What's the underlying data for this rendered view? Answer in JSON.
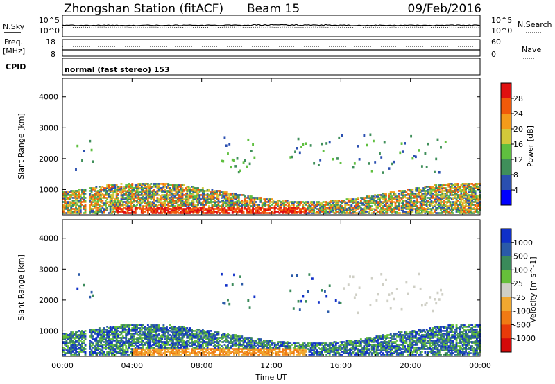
{
  "header": {
    "station": "Zhongshan Station (fitACF)",
    "beam": "Beam 15",
    "date": "09/Feb/2016"
  },
  "strips": {
    "nsky": {
      "label": "N.Sky",
      "ticks": [
        "10^5",
        "10^0"
      ],
      "right_ticks": [
        "10^5",
        "10^0"
      ],
      "right_label": "N.Search"
    },
    "freq": {
      "label_line1": "Freq.",
      "label_line2": "[MHz]",
      "ticks": [
        "18",
        "8"
      ],
      "right_ticks": [
        "60",
        "0"
      ],
      "right_label": "Nave"
    },
    "cpid": {
      "label": "CPID",
      "text": "normal (fast stereo) 153"
    }
  },
  "colors": {
    "power_scale": [
      "#0000ff",
      "#2a4fb0",
      "#3f8f5a",
      "#5fbf3f",
      "#d2c83a",
      "#f39b1a",
      "#f05a0a",
      "#e01010"
    ],
    "velocity_scale": [
      "#1030c8",
      "#2a5aa8",
      "#3a8a5a",
      "#66c03a",
      "#cfcfc5",
      "#f0a830",
      "#f07a14",
      "#e83a0a",
      "#d40a0a"
    ]
  },
  "chart_data": [
    {
      "type": "heatmap",
      "name": "power",
      "ylabel": "Slant Range [km]",
      "xlabel": "",
      "xticks": [
        "00:00",
        "04:00",
        "08:00",
        "12:00",
        "16:00",
        "20:00",
        "00:00"
      ],
      "yticks": [
        "1000",
        "2000",
        "3000",
        "4000"
      ],
      "ylim": [
        180,
        4600
      ],
      "xlim_hours": [
        0,
        24
      ],
      "colorbar": {
        "label": "Power [dB]",
        "ticks": [
          "4",
          "8",
          "12",
          "16",
          "20",
          "24",
          "28"
        ],
        "range": [
          0,
          30
        ]
      }
    },
    {
      "type": "heatmap",
      "name": "velocity",
      "ylabel": "Slant Range [km]",
      "xlabel": "Time UT",
      "xticks": [
        "00:00",
        "04:00",
        "08:00",
        "12:00",
        "16:00",
        "20:00",
        "00:00"
      ],
      "yticks": [
        "1000",
        "2000",
        "3000",
        "4000"
      ],
      "ylim": [
        180,
        4600
      ],
      "xlim_hours": [
        0,
        24
      ],
      "colorbar": {
        "label": "Velocity [m s^-1]",
        "ticks": [
          "1000",
          "500",
          "100",
          "25",
          "-25",
          "-100",
          "-500",
          "-1000"
        ]
      }
    }
  ]
}
